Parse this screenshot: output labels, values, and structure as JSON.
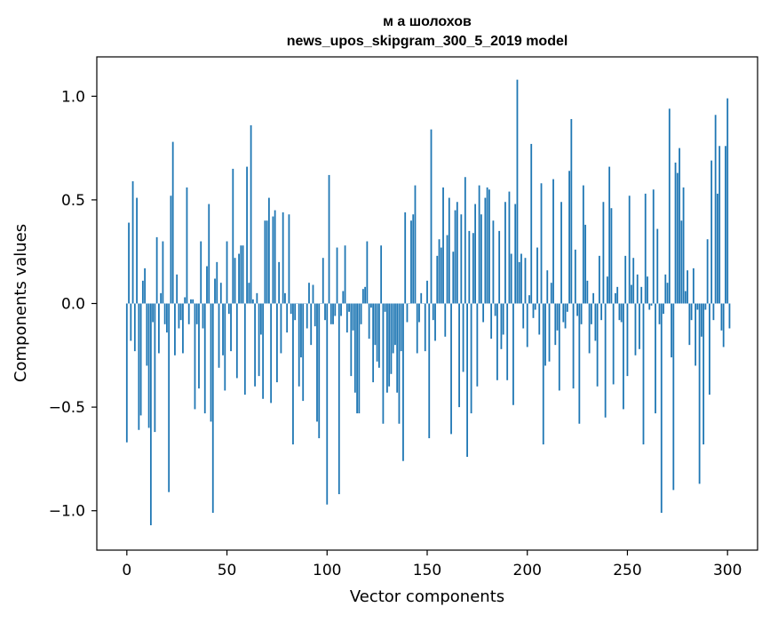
{
  "chart_data": {
    "type": "bar",
    "title": "м а шолохов",
    "subtitle": "news_upos_skipgram_300_5_2019 model",
    "xlabel": "Vector components",
    "ylabel": "Components values",
    "xlim": [
      -15,
      315
    ],
    "ylim": [
      -1.19,
      1.19
    ],
    "x_ticks": [
      0,
      50,
      100,
      150,
      200,
      250,
      300
    ],
    "x_tick_labels": [
      "0",
      "50",
      "100",
      "150",
      "200",
      "250",
      "300"
    ],
    "y_ticks": [
      -1.0,
      -0.5,
      0.0,
      0.5,
      1.0
    ],
    "y_tick_labels": [
      "−1.0",
      "−0.5",
      "0.0",
      "0.5",
      "1.0"
    ],
    "grid": false,
    "bar_color": "#1f77b4",
    "series": [
      {
        "name": "components",
        "values": [
          -0.67,
          0.39,
          -0.18,
          0.59,
          -0.23,
          0.51,
          -0.61,
          -0.54,
          0.11,
          0.17,
          -0.3,
          -0.6,
          -1.07,
          -0.09,
          -0.62,
          0.32,
          -0.24,
          0.05,
          0.3,
          -0.1,
          -0.14,
          -0.91,
          0.52,
          0.78,
          -0.25,
          0.14,
          -0.12,
          -0.08,
          -0.24,
          0.03,
          0.56,
          -0.1,
          0.02,
          0.02,
          -0.51,
          -0.1,
          -0.41,
          0.3,
          -0.12,
          -0.53,
          0.18,
          0.48,
          -0.57,
          -1.01,
          0.12,
          0.2,
          -0.31,
          0.1,
          -0.25,
          -0.42,
          0.3,
          -0.05,
          -0.23,
          0.65,
          0.22,
          -0.36,
          0.24,
          0.28,
          0.28,
          -0.44,
          0.66,
          0.1,
          0.86,
          0.02,
          -0.4,
          0.05,
          -0.35,
          -0.15,
          -0.46,
          0.4,
          0.4,
          0.51,
          -0.48,
          0.42,
          0.45,
          -0.38,
          0.2,
          -0.24,
          0.44,
          0.05,
          -0.14,
          0.43,
          -0.05,
          -0.68,
          -0.08,
          0.0,
          -0.4,
          -0.26,
          -0.47,
          0.0,
          -0.12,
          0.1,
          -0.2,
          0.09,
          -0.11,
          -0.57,
          -0.65,
          0.0,
          0.22,
          -0.08,
          -0.97,
          0.62,
          -0.1,
          -0.1,
          -0.06,
          0.27,
          -0.92,
          -0.06,
          0.06,
          0.28,
          -0.14,
          -0.04,
          -0.35,
          -0.13,
          -0.43,
          -0.53,
          -0.53,
          -0.1,
          0.07,
          0.08,
          0.3,
          -0.17,
          -0.02,
          -0.38,
          -0.2,
          -0.28,
          -0.31,
          0.28,
          -0.58,
          -0.04,
          -0.43,
          -0.4,
          -0.34,
          -0.24,
          -0.2,
          -0.43,
          -0.58,
          -0.23,
          -0.76,
          0.44,
          -0.09,
          0.0,
          0.4,
          0.43,
          0.57,
          -0.24,
          -0.09,
          0.05,
          0.0,
          -0.23,
          0.11,
          -0.65,
          0.84,
          -0.08,
          -0.18,
          0.23,
          0.31,
          0.27,
          0.56,
          -0.16,
          0.33,
          0.51,
          -0.63,
          0.25,
          0.45,
          0.49,
          -0.5,
          0.43,
          -0.33,
          0.61,
          -0.74,
          0.35,
          -0.53,
          0.34,
          0.48,
          -0.4,
          0.57,
          0.43,
          -0.09,
          0.51,
          0.56,
          0.55,
          -0.17,
          0.4,
          -0.06,
          -0.37,
          0.35,
          -0.22,
          -0.15,
          0.49,
          -0.37,
          0.54,
          0.24,
          -0.49,
          0.48,
          1.08,
          0.2,
          0.24,
          -0.12,
          0.22,
          -0.21,
          0.04,
          0.77,
          -0.07,
          -0.03,
          0.27,
          -0.15,
          0.58,
          -0.68,
          -0.3,
          0.16,
          -0.28,
          0.1,
          0.6,
          -0.2,
          -0.13,
          -0.42,
          0.49,
          -0.09,
          -0.12,
          -0.04,
          0.64,
          0.89,
          -0.41,
          0.26,
          -0.06,
          -0.58,
          -0.1,
          0.57,
          0.38,
          0.11,
          -0.24,
          -0.1,
          0.05,
          -0.18,
          -0.4,
          0.23,
          -0.08,
          0.49,
          -0.55,
          0.13,
          0.66,
          0.46,
          -0.39,
          0.05,
          0.08,
          -0.08,
          -0.09,
          -0.51,
          0.23,
          -0.35,
          0.52,
          0.09,
          0.22,
          -0.25,
          0.14,
          -0.22,
          0.08,
          -0.68,
          0.53,
          0.13,
          -0.03,
          -0.01,
          0.55,
          -0.53,
          0.36,
          -0.1,
          -1.01,
          -0.05,
          0.14,
          0.1,
          0.94,
          -0.26,
          -0.9,
          0.68,
          0.63,
          0.75,
          0.4,
          0.56,
          0.06,
          0.16,
          -0.2,
          -0.08,
          0.17,
          -0.3,
          -0.03,
          -0.87,
          -0.16,
          -0.68,
          -0.03,
          0.31,
          -0.44,
          0.69,
          -0.08,
          0.91,
          0.53,
          0.76,
          -0.13,
          -0.21,
          0.76,
          0.99,
          -0.12
        ]
      }
    ]
  }
}
